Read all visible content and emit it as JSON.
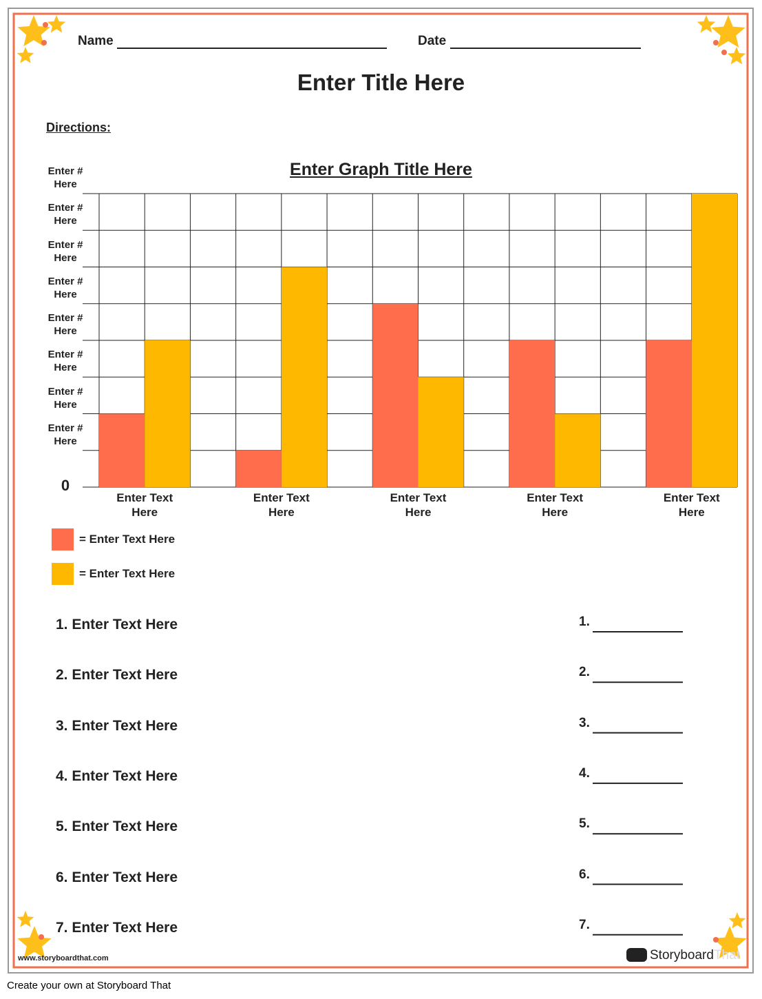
{
  "header": {
    "name_label": "Name",
    "date_label": "Date",
    "title": "Enter Title Here",
    "directions": "Directions:"
  },
  "chart_data": {
    "type": "bar",
    "title": "Enter Graph Title Here",
    "categories": [
      "Enter Text\nHere",
      "Enter Text\nHere",
      "Enter Text\nHere",
      "Enter Text\nHere",
      "Enter Text\nHere"
    ],
    "series": [
      {
        "name": "= Enter Text Here",
        "color": "#ff6d4d",
        "values": [
          2,
          1,
          5,
          4,
          4
        ]
      },
      {
        "name": "= Enter Text Here",
        "color": "#ffb800",
        "values": [
          4,
          6,
          3,
          2,
          8
        ]
      }
    ],
    "ylim": [
      0,
      8
    ],
    "yticks": [
      0,
      {
        "value": 1,
        "label": "Enter #\nHere"
      },
      {
        "value": 2,
        "label": "Enter #\nHere"
      },
      {
        "value": 3,
        "label": "Enter #\nHere"
      },
      {
        "value": 4,
        "label": "Enter #\nHere"
      },
      {
        "value": 5,
        "label": "Enter #\nHere"
      },
      {
        "value": 6,
        "label": "Enter #\nHere"
      },
      {
        "value": 7,
        "label": "Enter #\nHere"
      },
      {
        "value": 8,
        "label": "Enter #\nHere"
      }
    ],
    "grid": true
  },
  "questions": [
    {
      "text": "1. Enter Text Here",
      "answer": "1."
    },
    {
      "text": "2. Enter Text Here",
      "answer": "2."
    },
    {
      "text": "3. Enter Text Here",
      "answer": "3."
    },
    {
      "text": "4. Enter Text Here",
      "answer": "4."
    },
    {
      "text": "5. Enter Text Here",
      "answer": "5."
    },
    {
      "text": "6. Enter Text Here",
      "answer": "6."
    },
    {
      "text": "7. Enter Text Here",
      "answer": "7."
    }
  ],
  "footer": {
    "url": "www.storyboardthat.com",
    "logo_a": "Storyboard",
    "logo_b": "That",
    "credit": "Create your own at Storyboard That"
  }
}
